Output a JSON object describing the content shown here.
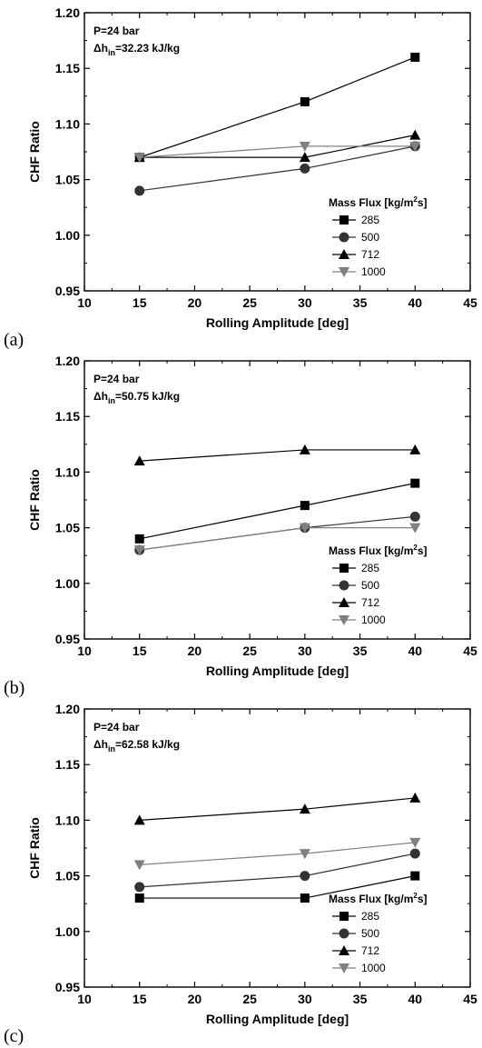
{
  "chart_data": [
    {
      "type": "line",
      "panel_label": "(a)",
      "xlabel": "Rolling Amplitude [deg]",
      "ylabel": "CHF Ratio",
      "xlim": [
        10,
        45
      ],
      "ylim": [
        0.95,
        1.2
      ],
      "xticks": [
        10,
        15,
        20,
        25,
        30,
        35,
        40,
        45
      ],
      "yticks": [
        0.95,
        1.0,
        1.05,
        1.1,
        1.15,
        1.2
      ],
      "annotation": {
        "pressure": "P=24 bar",
        "dh_prefix": "Δh",
        "dh_sub": "in",
        "dh_value": "=32.23 kJ/kg"
      },
      "legend": {
        "title_prefix": "Mass Flux [kg/m",
        "title_sup": "2",
        "title_suffix": "s]",
        "placement": "lower-right"
      },
      "x": [
        15,
        30,
        40
      ],
      "series": [
        {
          "name": "285",
          "marker": "square",
          "color": "#000000",
          "values": [
            1.07,
            1.12,
            1.16
          ]
        },
        {
          "name": "500",
          "marker": "circle",
          "color": "#333333",
          "values": [
            1.04,
            1.06,
            1.08
          ]
        },
        {
          "name": "712",
          "marker": "triangle-up",
          "color": "#000000",
          "values": [
            1.07,
            1.07,
            1.09
          ]
        },
        {
          "name": "1000",
          "marker": "triangle-down",
          "color": "#808080",
          "values": [
            1.07,
            1.08,
            1.08
          ]
        }
      ]
    },
    {
      "type": "line",
      "panel_label": "(b)",
      "xlabel": "Rolling Amplitude [deg]",
      "ylabel": "CHF Ratio",
      "xlim": [
        10,
        45
      ],
      "ylim": [
        0.95,
        1.2
      ],
      "xticks": [
        10,
        15,
        20,
        25,
        30,
        35,
        40,
        45
      ],
      "yticks": [
        0.95,
        1.0,
        1.05,
        1.1,
        1.15,
        1.2
      ],
      "annotation": {
        "pressure": "P=24 bar",
        "dh_prefix": "Δh",
        "dh_sub": "in",
        "dh_value": "=50.75 kJ/kg"
      },
      "legend": {
        "title_prefix": "Mass Flux [kg/m",
        "title_sup": "2",
        "title_suffix": "s]",
        "placement": "lower-right"
      },
      "x": [
        15,
        30,
        40
      ],
      "series": [
        {
          "name": "285",
          "marker": "square",
          "color": "#000000",
          "values": [
            1.04,
            1.07,
            1.09
          ]
        },
        {
          "name": "500",
          "marker": "circle",
          "color": "#333333",
          "values": [
            1.03,
            1.05,
            1.06
          ]
        },
        {
          "name": "712",
          "marker": "triangle-up",
          "color": "#000000",
          "values": [
            1.11,
            1.12,
            1.12
          ]
        },
        {
          "name": "1000",
          "marker": "triangle-down",
          "color": "#808080",
          "values": [
            1.03,
            1.05,
            1.05
          ]
        }
      ]
    },
    {
      "type": "line",
      "panel_label": "(c)",
      "xlabel": "Rolling Amplitude [deg]",
      "ylabel": "CHF Ratio",
      "xlim": [
        10,
        45
      ],
      "ylim": [
        0.95,
        1.2
      ],
      "xticks": [
        10,
        15,
        20,
        25,
        30,
        35,
        40,
        45
      ],
      "yticks": [
        0.95,
        1.0,
        1.05,
        1.1,
        1.15,
        1.2
      ],
      "annotation": {
        "pressure": "P=24 bar",
        "dh_prefix": "Δh",
        "dh_sub": "in",
        "dh_value": "=62.58 kJ/kg"
      },
      "legend": {
        "title_prefix": "Mass Flux [kg/m",
        "title_sup": "2",
        "title_suffix": "s]",
        "placement": "lower-right"
      },
      "x": [
        15,
        30,
        40
      ],
      "series": [
        {
          "name": "285",
          "marker": "square",
          "color": "#000000",
          "values": [
            1.03,
            1.03,
            1.05
          ]
        },
        {
          "name": "500",
          "marker": "circle",
          "color": "#333333",
          "values": [
            1.04,
            1.05,
            1.07
          ]
        },
        {
          "name": "712",
          "marker": "triangle-up",
          "color": "#000000",
          "values": [
            1.1,
            1.11,
            1.12
          ]
        },
        {
          "name": "1000",
          "marker": "triangle-down",
          "color": "#808080",
          "values": [
            1.06,
            1.07,
            1.08
          ]
        }
      ]
    }
  ]
}
